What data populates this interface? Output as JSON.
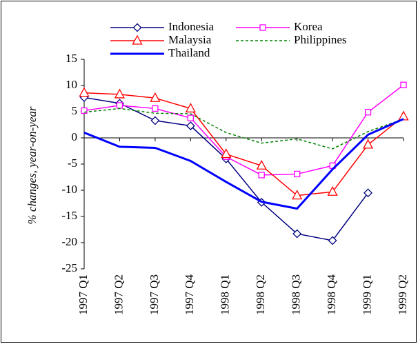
{
  "chart_data": {
    "type": "line",
    "y_label": "% changes, year-on-year",
    "categories": [
      "1997 Q1",
      "1997 Q2",
      "1997 Q3",
      "1997 Q4",
      "1998 Q1",
      "1998 Q2",
      "1998 Q3",
      "1998 Q4",
      "1999 Q1",
      "1999 Q2"
    ],
    "series": [
      {
        "name": "Indonesia",
        "color": "#000080",
        "marker": "diamond",
        "values": [
          7.7,
          6.6,
          3.3,
          2.3,
          -4.0,
          -12.3,
          -18.3,
          -19.6,
          -10.5,
          null
        ]
      },
      {
        "name": "Korea",
        "color": "#ff00ff",
        "marker": "square",
        "values": [
          5.2,
          6.2,
          5.6,
          3.8,
          -3.6,
          -7.1,
          -6.9,
          -5.3,
          4.9,
          10.1
        ]
      },
      {
        "name": "Malaysia",
        "color": "#ff0000",
        "marker": "triangle",
        "values": [
          8.6,
          8.3,
          7.6,
          5.6,
          -3.1,
          -5.3,
          -11.0,
          -10.3,
          -1.3,
          4.1
        ]
      },
      {
        "name": "Philippines",
        "color": "#008000",
        "dashed": true,
        "values": [
          4.9,
          5.6,
          4.7,
          4.6,
          1.0,
          -1.0,
          -0.2,
          -2.1,
          1.2,
          3.6
        ]
      },
      {
        "name": "Thailand",
        "color": "#0000ff",
        "line_width": 3,
        "values": [
          1.0,
          -1.7,
          -1.9,
          -4.4,
          -8.4,
          -12.2,
          -13.5,
          -6.0,
          0.6,
          3.6
        ]
      }
    ],
    "ylim": [
      -25,
      15
    ],
    "yticks": [
      -25,
      -20,
      -15,
      -10,
      -5,
      0,
      5,
      10,
      15
    ]
  }
}
